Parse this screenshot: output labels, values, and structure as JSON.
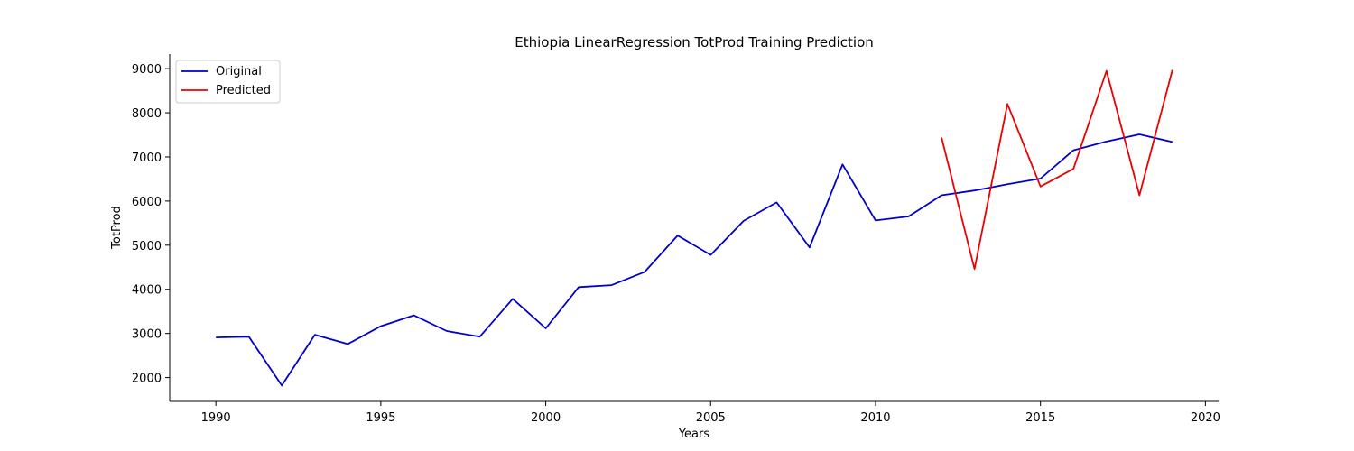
{
  "chart_data": {
    "type": "line",
    "title": "Ethiopia LinearRegression TotProd Training Prediction",
    "xlabel": "Years",
    "ylabel": "TotProd",
    "xlim": [
      1988.6,
      2020.4
    ],
    "ylim": [
      1460,
      9330
    ],
    "xticks": [
      1990,
      1995,
      2000,
      2005,
      2010,
      2015,
      2020
    ],
    "yticks": [
      2000,
      3000,
      4000,
      5000,
      6000,
      7000,
      8000,
      9000
    ],
    "grid": false,
    "legend_position": "top-left",
    "series": [
      {
        "name": "Original",
        "color": "#0000cc",
        "x": [
          1990,
          1991,
          1992,
          1993,
          1994,
          1995,
          1996,
          1997,
          1998,
          1999,
          2000,
          2001,
          2002,
          2003,
          2004,
          2005,
          2006,
          2007,
          2008,
          2009,
          2010,
          2011,
          2012,
          2013,
          2014,
          2015,
          2016,
          2017,
          2018,
          2019
        ],
        "y": [
          2910,
          2925,
          1820,
          2970,
          2760,
          3165,
          3410,
          3055,
          2925,
          3785,
          3115,
          4050,
          4095,
          4395,
          5220,
          4780,
          5550,
          5970,
          4950,
          6830,
          5560,
          5650,
          6130,
          6240,
          6380,
          6510,
          7150,
          7350,
          7510,
          7340
        ]
      },
      {
        "name": "Predicted",
        "color": "#ee0000",
        "x": [
          2012,
          2013,
          2014,
          2015,
          2016,
          2017,
          2018,
          2019
        ],
        "y": [
          7440,
          4460,
          8200,
          6330,
          6730,
          8950,
          6130,
          8970
        ]
      }
    ]
  }
}
